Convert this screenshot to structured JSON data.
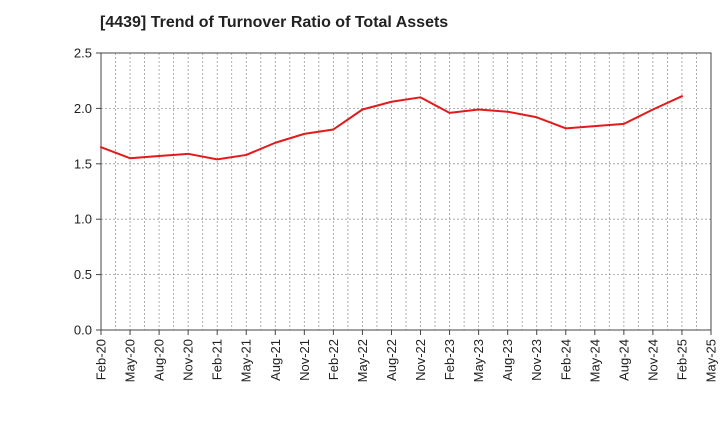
{
  "chart_data": {
    "type": "line",
    "title": "[4439]  Trend of Turnover Ratio of Total Assets",
    "xlabel": "",
    "ylabel": "",
    "ylim": [
      0,
      2.5
    ],
    "yticks": [
      "0.0",
      "0.5",
      "1.0",
      "1.5",
      "2.0",
      "2.5"
    ],
    "xticks": [
      "Feb-20",
      "May-20",
      "Aug-20",
      "Nov-20",
      "Feb-21",
      "May-21",
      "Aug-21",
      "Nov-21",
      "Feb-22",
      "May-22",
      "Aug-22",
      "Nov-22",
      "Feb-23",
      "May-23",
      "Aug-23",
      "Nov-23",
      "Feb-24",
      "May-24",
      "Aug-24",
      "Nov-24",
      "Feb-25",
      "May-25"
    ],
    "grid": true,
    "series": [
      {
        "color": "#e31a1c",
        "x": [
          "Feb-20",
          "May-20",
          "Aug-20",
          "Nov-20",
          "Feb-21",
          "May-21",
          "Aug-21",
          "Nov-21",
          "Feb-22",
          "May-22",
          "Aug-22",
          "Nov-22",
          "Feb-23",
          "May-23",
          "Aug-23",
          "Nov-23",
          "Feb-24",
          "May-24",
          "Aug-24",
          "Nov-24",
          "Feb-25"
        ],
        "values": [
          1.65,
          1.55,
          1.57,
          1.59,
          1.54,
          1.58,
          1.69,
          1.77,
          1.81,
          1.99,
          2.06,
          2.1,
          1.96,
          1.99,
          1.97,
          1.92,
          1.82,
          1.84,
          1.86,
          1.99,
          2.11
        ]
      }
    ]
  }
}
